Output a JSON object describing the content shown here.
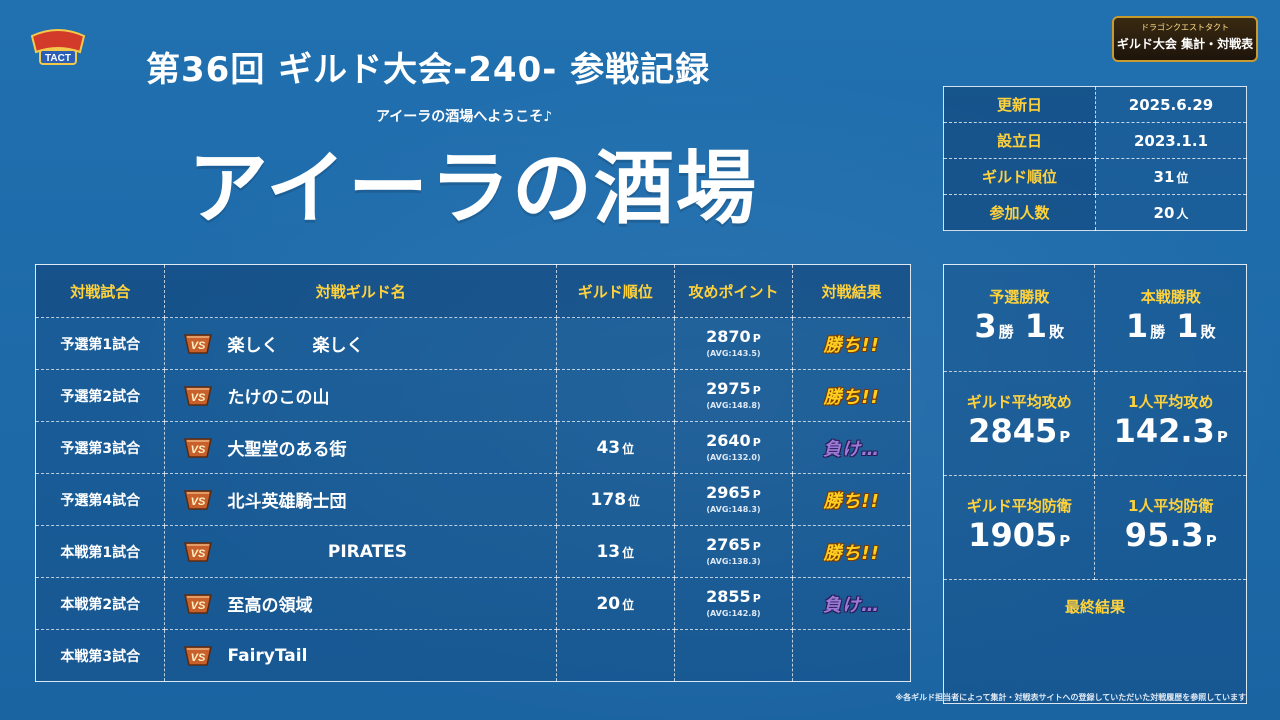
{
  "logos": {
    "left_text": "TACT",
    "right_line1": "ドラゴンクエストタクト",
    "right_line2": "ギルド大会 集計・対戦表"
  },
  "header": {
    "title": "第36回 ギルド大会-240- 参戦記録",
    "subtitle": "アイーラの酒場へようこそ♪",
    "guild_name": "アイーラの酒場"
  },
  "info": {
    "rows": [
      {
        "label": "更新日",
        "value": "2025.6.29",
        "unit": ""
      },
      {
        "label": "設立日",
        "value": "2023.1.1",
        "unit": ""
      },
      {
        "label": "ギルド順位",
        "value": "31",
        "unit": "位"
      },
      {
        "label": "参加人数",
        "value": "20",
        "unit": "人"
      }
    ]
  },
  "matches": {
    "headers": [
      "対戦試合",
      "対戦ギルド名",
      "ギルド順位",
      "攻めポイント",
      "対戦結果"
    ],
    "rows": [
      {
        "round": "予選第1試合",
        "name": "楽しく　　楽しく",
        "rank": "",
        "rank_unit": "",
        "points": "2870",
        "p": "P",
        "avg": "(AVG:143.5)",
        "result": "勝ち!!",
        "result_type": "win"
      },
      {
        "round": "予選第2試合",
        "name": "たけのこの山",
        "rank": "",
        "rank_unit": "",
        "points": "2975",
        "p": "P",
        "avg": "(AVG:148.8)",
        "result": "勝ち!!",
        "result_type": "win"
      },
      {
        "round": "予選第3試合",
        "name": "大聖堂のある街",
        "rank": "43",
        "rank_unit": "位",
        "points": "2640",
        "p": "P",
        "avg": "(AVG:132.0)",
        "result": "負け…",
        "result_type": "lose"
      },
      {
        "round": "予選第4試合",
        "name": "北斗英雄騎士団",
        "rank": "178",
        "rank_unit": "位",
        "points": "2965",
        "p": "P",
        "avg": "(AVG:148.3)",
        "result": "勝ち!!",
        "result_type": "win"
      },
      {
        "round": "本戦第1試合",
        "name": "PIRATES",
        "rank": "13",
        "rank_unit": "位",
        "points": "2765",
        "p": "P",
        "avg": "(AVG:138.3)",
        "result": "勝ち!!",
        "result_type": "win"
      },
      {
        "round": "本戦第2試合",
        "name": "至高の領域",
        "rank": "20",
        "rank_unit": "位",
        "points": "2855",
        "p": "P",
        "avg": "(AVG:142.8)",
        "result": "負け…",
        "result_type": "lose"
      },
      {
        "round": "本戦第3試合",
        "name": "FairyTail",
        "rank": "",
        "rank_unit": "",
        "points": "",
        "p": "",
        "avg": "",
        "result": "",
        "result_type": ""
      }
    ]
  },
  "stats": {
    "prelim_label": "予選勝敗",
    "prelim_wins": "3",
    "prelim_losses": "1",
    "main_label": "本戦勝敗",
    "main_wins": "1",
    "main_losses": "1",
    "win_unit": "勝",
    "loss_unit": "敗",
    "guild_avg_atk_label": "ギルド平均攻め",
    "guild_avg_atk": "2845",
    "per_avg_atk_label": "1人平均攻め",
    "per_avg_atk": "142.3",
    "guild_avg_def_label": "ギルド平均防衛",
    "guild_avg_def": "1905",
    "per_avg_def_label": "1人平均防衛",
    "per_avg_def": "95.3",
    "p_unit": "P",
    "final_label": "最終結果"
  },
  "footnote": "※各ギルド担当者によって集計・対戦表サイトへの登録していただいた対戦履歴を参照しています",
  "colors": {
    "accent": "#ffd23c",
    "background": "#1e6aa8",
    "win": "#ffcf1f",
    "lose": "#9a7ad6"
  },
  "icons": {
    "vs": "vs-badge-icon"
  }
}
